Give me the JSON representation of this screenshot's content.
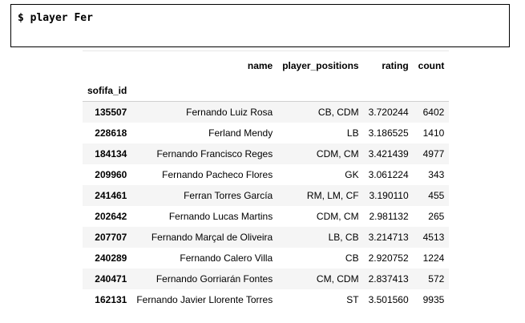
{
  "command": "$ player Fer",
  "table": {
    "columns": [
      "name",
      "player_positions",
      "rating",
      "count"
    ],
    "index_name": "sofifa_id",
    "rows": [
      {
        "id": "135507",
        "name": "Fernando Luiz Rosa",
        "positions": "CB, CDM",
        "rating": "3.720244",
        "count": "6402"
      },
      {
        "id": "228618",
        "name": "Ferland Mendy",
        "positions": "LB",
        "rating": "3.186525",
        "count": "1410"
      },
      {
        "id": "184134",
        "name": "Fernando Francisco Reges",
        "positions": "CDM, CM",
        "rating": "3.421439",
        "count": "4977"
      },
      {
        "id": "209960",
        "name": "Fernando Pacheco Flores",
        "positions": "GK",
        "rating": "3.061224",
        "count": "343"
      },
      {
        "id": "241461",
        "name": "Ferran Torres García",
        "positions": "RM, LM, CF",
        "rating": "3.190110",
        "count": "455"
      },
      {
        "id": "202642",
        "name": "Fernando Lucas Martins",
        "positions": "CDM, CM",
        "rating": "2.981132",
        "count": "265"
      },
      {
        "id": "207707",
        "name": "Fernando Marçal de Oliveira",
        "positions": "LB, CB",
        "rating": "3.214713",
        "count": "4513"
      },
      {
        "id": "240289",
        "name": "Fernando Calero Villa",
        "positions": "CB",
        "rating": "2.920752",
        "count": "1224"
      },
      {
        "id": "240471",
        "name": "Fernando Gorriarán Fontes",
        "positions": "CM, CDM",
        "rating": "2.837413",
        "count": "572"
      },
      {
        "id": "162131",
        "name": "Fernando Javier Llorente Torres",
        "positions": "ST",
        "rating": "3.501560",
        "count": "9935"
      }
    ]
  }
}
